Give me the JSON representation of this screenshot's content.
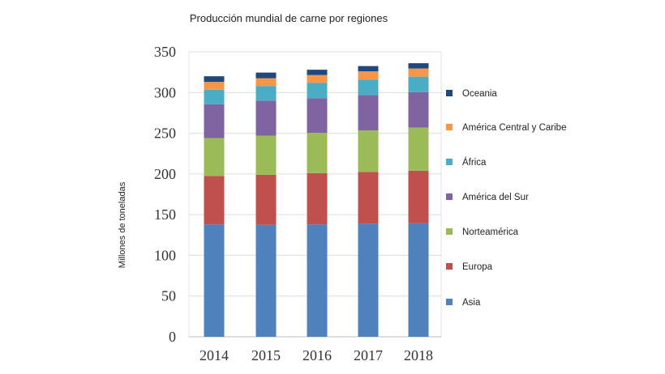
{
  "chart_data": {
    "type": "bar",
    "stacked": true,
    "title": "Producción mundial de carne por regiones",
    "xlabel": "",
    "ylabel": "Millones de toneladas",
    "ylim": [
      0,
      350
    ],
    "yticks": [
      0,
      50,
      100,
      150,
      200,
      250,
      300,
      350
    ],
    "grid": true,
    "legend_position": "right",
    "categories": [
      "2014",
      "2015",
      "2016",
      "2017",
      "2018"
    ],
    "series": [
      {
        "name": "Asia",
        "color": "#4f81bd",
        "values": [
          138,
          137.5,
          138,
          139,
          139.5
        ]
      },
      {
        "name": "Europa",
        "color": "#c0504d",
        "values": [
          59.5,
          61.5,
          63,
          63.5,
          64.5
        ]
      },
      {
        "name": "Norteamérica",
        "color": "#9bbb59",
        "values": [
          46.5,
          48,
          49.5,
          51,
          53
        ]
      },
      {
        "name": "América del Sur",
        "color": "#8064a2",
        "values": [
          41.5,
          43,
          42.5,
          43.5,
          43.5
        ]
      },
      {
        "name": "África",
        "color": "#4bacc6",
        "values": [
          18,
          18,
          19,
          19,
          19
        ]
      },
      {
        "name": "América Central y Caribe",
        "color": "#f79646",
        "values": [
          9.5,
          9.5,
          9.5,
          10,
          10
        ]
      },
      {
        "name": "Oceania",
        "color": "#1f497d",
        "values": [
          7,
          7,
          6.5,
          6.5,
          6.5
        ]
      }
    ]
  }
}
